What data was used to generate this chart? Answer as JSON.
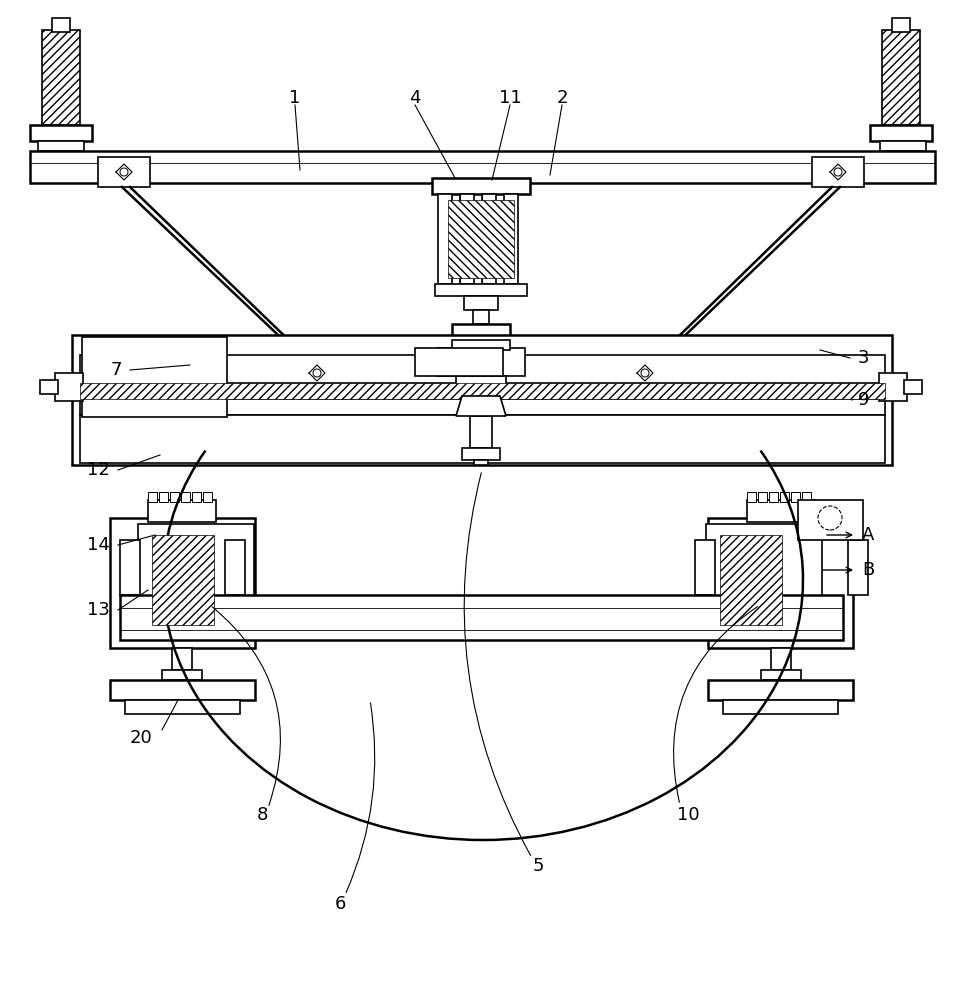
{
  "bg_color": "#ffffff",
  "figsize": [
    9.66,
    10.0
  ],
  "dpi": 100,
  "lw": 1.2,
  "lw2": 1.8
}
